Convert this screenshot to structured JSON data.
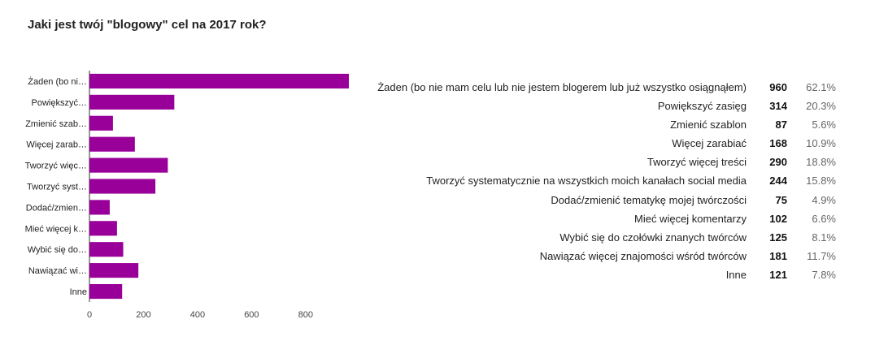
{
  "title": "Jaki jest twój \"blogowy\" cel na 2017 rok?",
  "colors": {
    "bar": "#990099",
    "grid": "#cccccc"
  },
  "chart_data": {
    "type": "bar",
    "orientation": "horizontal",
    "categories": [
      "Żaden (bo ni…",
      "Powiększyć…",
      "Zmienić szab…",
      "Więcej zarab…",
      "Tworzyć więc…",
      "Tworzyć syst…",
      "Dodać/zmien…",
      "Mieć więcej k…",
      "Wybić się do…",
      "Nawiązać wi…",
      "Inne"
    ],
    "values": [
      960,
      314,
      87,
      168,
      290,
      244,
      75,
      102,
      125,
      181,
      121
    ],
    "xlim": [
      0,
      960
    ],
    "xticks": [
      0,
      200,
      400,
      600,
      800
    ],
    "grid": false,
    "legend": "none"
  },
  "summary": [
    {
      "label": "Żaden (bo nie mam celu lub nie jestem blogerem lub już wszystko osiągnąłem)",
      "count": "960",
      "pct": "62.1%"
    },
    {
      "label": "Powiększyć zasięg",
      "count": "314",
      "pct": "20.3%"
    },
    {
      "label": "Zmienić szablon",
      "count": "87",
      "pct": "5.6%"
    },
    {
      "label": "Więcej zarabiać",
      "count": "168",
      "pct": "10.9%"
    },
    {
      "label": "Tworzyć więcej treści",
      "count": "290",
      "pct": "18.8%"
    },
    {
      "label": "Tworzyć systematycznie na wszystkich moich kanałach social media",
      "count": "244",
      "pct": "15.8%"
    },
    {
      "label": "Dodać/zmienić tematykę mojej twórczości",
      "count": "75",
      "pct": "4.9%"
    },
    {
      "label": "Mieć więcej komentarzy",
      "count": "102",
      "pct": "6.6%"
    },
    {
      "label": "Wybić się do czołówki znanych twórców",
      "count": "125",
      "pct": "8.1%"
    },
    {
      "label": "Nawiązać więcej znajomości wśród twórców",
      "count": "181",
      "pct": "11.7%"
    },
    {
      "label": "Inne",
      "count": "121",
      "pct": "7.8%"
    }
  ]
}
